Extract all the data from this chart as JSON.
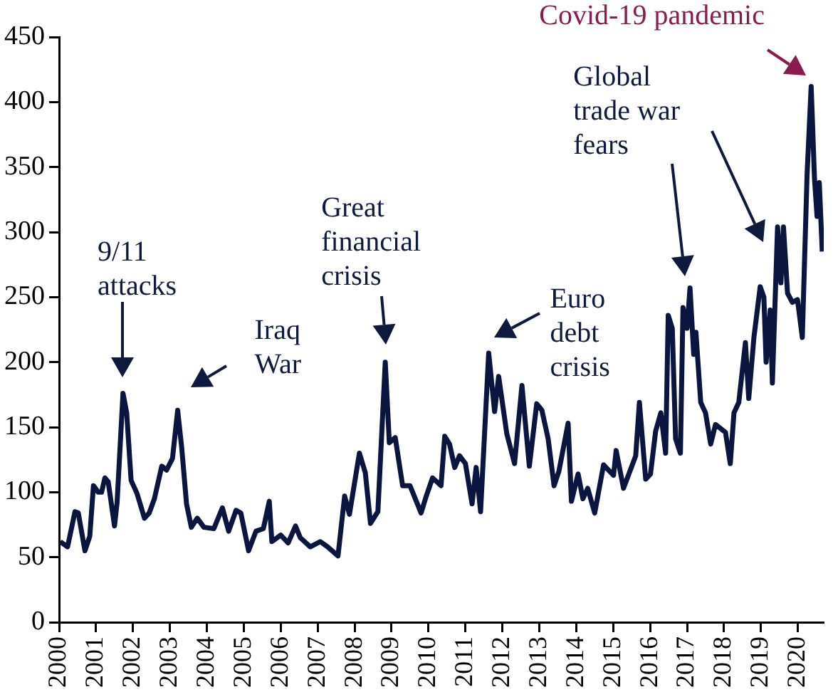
{
  "chart_data": {
    "type": "line",
    "xlim": [
      2000,
      2020.7
    ],
    "xticks": [
      2000,
      2001,
      2002,
      2003,
      2004,
      2005,
      2006,
      2007,
      2008,
      2009,
      2010,
      2011,
      2012,
      2013,
      2014,
      2015,
      2016,
      2017,
      2018,
      2019,
      2020
    ],
    "ylim": [
      0,
      450
    ],
    "yticks": [
      0,
      50,
      100,
      150,
      200,
      250,
      300,
      350,
      400,
      450
    ],
    "grid": false,
    "legend": false,
    "marker": "none",
    "line_style": "solid",
    "series": [
      {
        "color": "#0b1640",
        "x": [
          2000.03,
          2000.23,
          2000.43,
          2000.52,
          2000.7,
          2000.83,
          2000.93,
          2001.06,
          2001.15,
          2001.24,
          2001.33,
          2001.5,
          2001.57,
          2001.73,
          2001.83,
          2001.95,
          2002.11,
          2002.31,
          2002.44,
          2002.58,
          2002.78,
          2002.91,
          2003.07,
          2003.21,
          2003.32,
          2003.45,
          2003.58,
          2003.74,
          2003.92,
          2004.19,
          2004.42,
          2004.59,
          2004.79,
          2004.92,
          2005.13,
          2005.33,
          2005.53,
          2005.69,
          2005.76,
          2006.0,
          2006.2,
          2006.4,
          2006.53,
          2006.8,
          2007.07,
          2007.27,
          2007.55,
          2007.73,
          2007.86,
          2008.13,
          2008.29,
          2008.43,
          2008.63,
          2008.83,
          2008.94,
          2009.1,
          2009.3,
          2009.5,
          2009.8,
          2009.94,
          2010.11,
          2010.34,
          2010.44,
          2010.57,
          2010.71,
          2010.84,
          2011.0,
          2011.18,
          2011.29,
          2011.41,
          2011.63,
          2011.79,
          2011.9,
          2012.12,
          2012.33,
          2012.53,
          2012.73,
          2012.93,
          2013.07,
          2013.24,
          2013.4,
          2013.53,
          2013.78,
          2013.87,
          2014.05,
          2014.18,
          2014.31,
          2014.5,
          2014.74,
          2015.01,
          2015.08,
          2015.28,
          2015.61,
          2015.71,
          2015.88,
          2016.01,
          2016.15,
          2016.29,
          2016.42,
          2016.49,
          2016.6,
          2016.69,
          2016.82,
          2016.89,
          2017.0,
          2017.08,
          2017.18,
          2017.24,
          2017.37,
          2017.5,
          2017.64,
          2017.77,
          2018.04,
          2018.17,
          2018.27,
          2018.4,
          2018.58,
          2018.67,
          2018.81,
          2018.98,
          2019.08,
          2019.14,
          2019.25,
          2019.31,
          2019.45,
          2019.54,
          2019.61,
          2019.72,
          2019.85,
          2019.99,
          2020.12,
          2020.25,
          2020.36,
          2020.45,
          2020.52,
          2020.58,
          2020.66
        ],
        "values": [
          62,
          58,
          85,
          84,
          55,
          66,
          105,
          100,
          100,
          111,
          108,
          74,
          92,
          176,
          161,
          109,
          99,
          80,
          84,
          95,
          120,
          117,
          126,
          163,
          134,
          91,
          73,
          80,
          73,
          72,
          88,
          70,
          86,
          84,
          55,
          70,
          72,
          93,
          62,
          67,
          61,
          74,
          65,
          58,
          62,
          58,
          51,
          97,
          83,
          130,
          115,
          76,
          85,
          200,
          138,
          142,
          105,
          105,
          84,
          97,
          111,
          105,
          143,
          137,
          119,
          128,
          122,
          91,
          119,
          85,
          207,
          162,
          189,
          145,
          122,
          182,
          120,
          168,
          163,
          141,
          105,
          116,
          153,
          93,
          114,
          95,
          103,
          84,
          121,
          113,
          132,
          103,
          128,
          169,
          110,
          114,
          147,
          161,
          130,
          236,
          226,
          141,
          130,
          242,
          226,
          257,
          206,
          223,
          169,
          161,
          137,
          152,
          146,
          122,
          161,
          169,
          215,
          172,
          219,
          258,
          250,
          200,
          240,
          184,
          304,
          261,
          304,
          253,
          246,
          248,
          219,
          345,
          412,
          341,
          312,
          338,
          285
        ]
      }
    ],
    "annotations": [
      "9/11 attacks",
      {
        "text": "Iraq War",
        "x": 2003.21,
        "y": 163
      },
      {
        "text": "Great financial crisis",
        "x": 2008.83,
        "y": 200
      },
      {
        "text": "Euro debt crisis",
        "x": 2011.63,
        "y": 207
      },
      "Global trade war fears",
      {
        "text": "Covid-19 pandemic",
        "x": 2020.36,
        "y": 412
      }
    ]
  }
}
